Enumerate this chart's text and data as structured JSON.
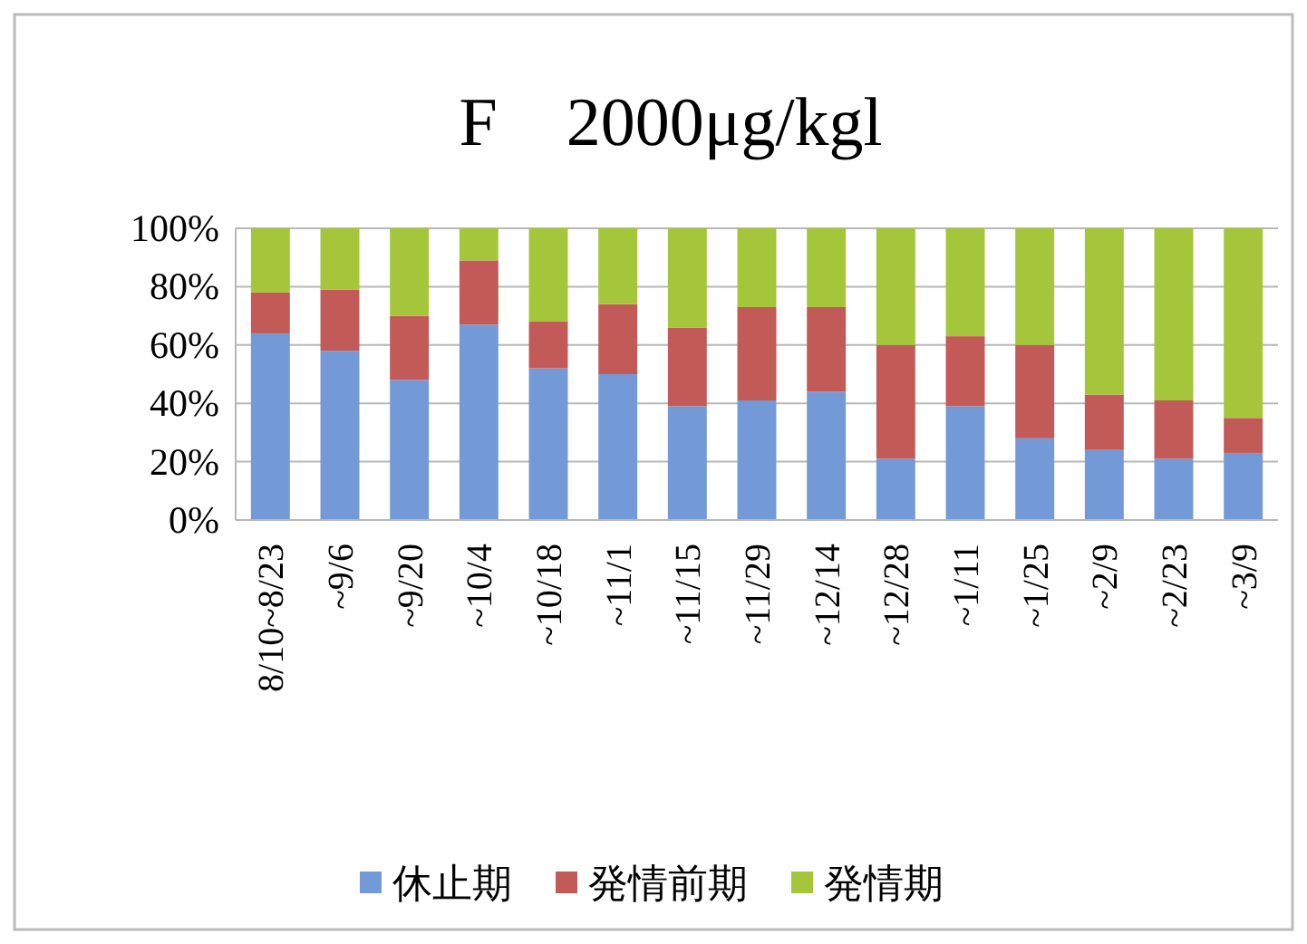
{
  "chart_data": {
    "type": "bar",
    "title": "F　2000μg/kgl",
    "stacked": true,
    "categories": [
      "8/10~8/23",
      "~9/6",
      "~9/20",
      "~10/4",
      "~10/18",
      "~11/1",
      "~11/15",
      "~11/29",
      "~12/14",
      "~12/28",
      "~1/11",
      "~1/25",
      "~2/9",
      "~2/23",
      "~3/9"
    ],
    "series": [
      {
        "name": "休止期",
        "color": "#7399d6",
        "values": [
          64,
          58,
          48,
          67,
          52,
          50,
          39,
          41,
          44,
          21,
          39,
          28,
          24,
          21,
          23
        ]
      },
      {
        "name": "発情前期",
        "color": "#c25a57",
        "values": [
          14,
          21,
          22,
          22,
          16,
          24,
          27,
          32,
          29,
          39,
          24,
          32,
          19,
          20,
          12
        ]
      },
      {
        "name": "発情期",
        "color": "#a5c53a",
        "values": [
          22,
          21,
          30,
          11,
          32,
          26,
          34,
          27,
          27,
          40,
          37,
          40,
          57,
          59,
          65
        ]
      }
    ],
    "ylim": [
      0,
      100
    ],
    "yticks": [
      {
        "value": 0,
        "label": "0%"
      },
      {
        "value": 20,
        "label": "20%"
      },
      {
        "value": 40,
        "label": "40%"
      },
      {
        "value": 60,
        "label": "60%"
      },
      {
        "value": 80,
        "label": "80%"
      },
      {
        "value": 100,
        "label": "100%"
      }
    ],
    "grid": "y",
    "legend": "bottom"
  }
}
